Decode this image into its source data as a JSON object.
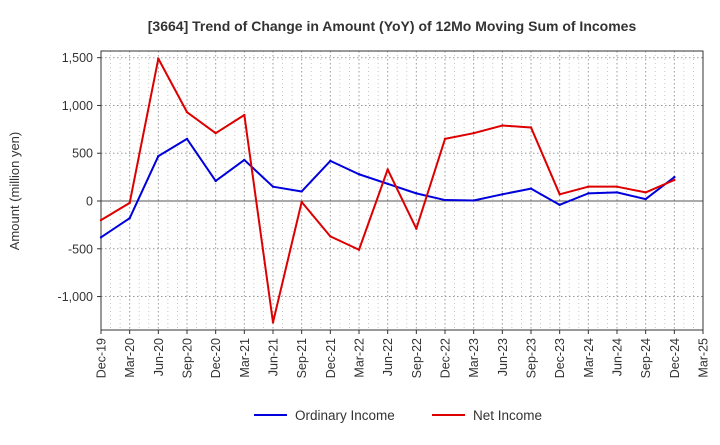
{
  "chart_data": {
    "type": "line",
    "title": "[3664]  Trend of Change in Amount (YoY) of 12Mo Moving Sum of Incomes",
    "xlabel": "",
    "ylabel": "Amount (million yen)",
    "ylim": [
      -1350,
      1570
    ],
    "yticks": [
      1500,
      1000,
      500,
      0,
      -500,
      -1000
    ],
    "ytick_labels": [
      "1,500",
      "1,000",
      "500",
      "0",
      "-500",
      "-1,000"
    ],
    "categories": [
      "Dec-19",
      "Mar-20",
      "Jun-20",
      "Sep-20",
      "Dec-20",
      "Mar-21",
      "Jun-21",
      "Sep-21",
      "Dec-21",
      "Mar-22",
      "Jun-22",
      "Sep-22",
      "Dec-22",
      "Mar-23",
      "Jun-23",
      "Sep-23",
      "Dec-23",
      "Mar-24",
      "Jun-24",
      "Sep-24",
      "Dec-24",
      "Mar-25"
    ],
    "grid": true,
    "legend_position": "bottom",
    "series": [
      {
        "name": "Ordinary Income",
        "color": "#0000dd",
        "values": [
          -380,
          -180,
          470,
          650,
          210,
          430,
          150,
          100,
          420,
          280,
          180,
          80,
          10,
          5,
          70,
          130,
          -40,
          80,
          90,
          20,
          250,
          null
        ]
      },
      {
        "name": "Net Income",
        "color": "#dd0000",
        "values": [
          -200,
          -20,
          1490,
          930,
          710,
          900,
          -1270,
          -10,
          -370,
          -510,
          330,
          -290,
          650,
          710,
          790,
          770,
          70,
          150,
          150,
          90,
          220,
          null
        ]
      }
    ]
  }
}
